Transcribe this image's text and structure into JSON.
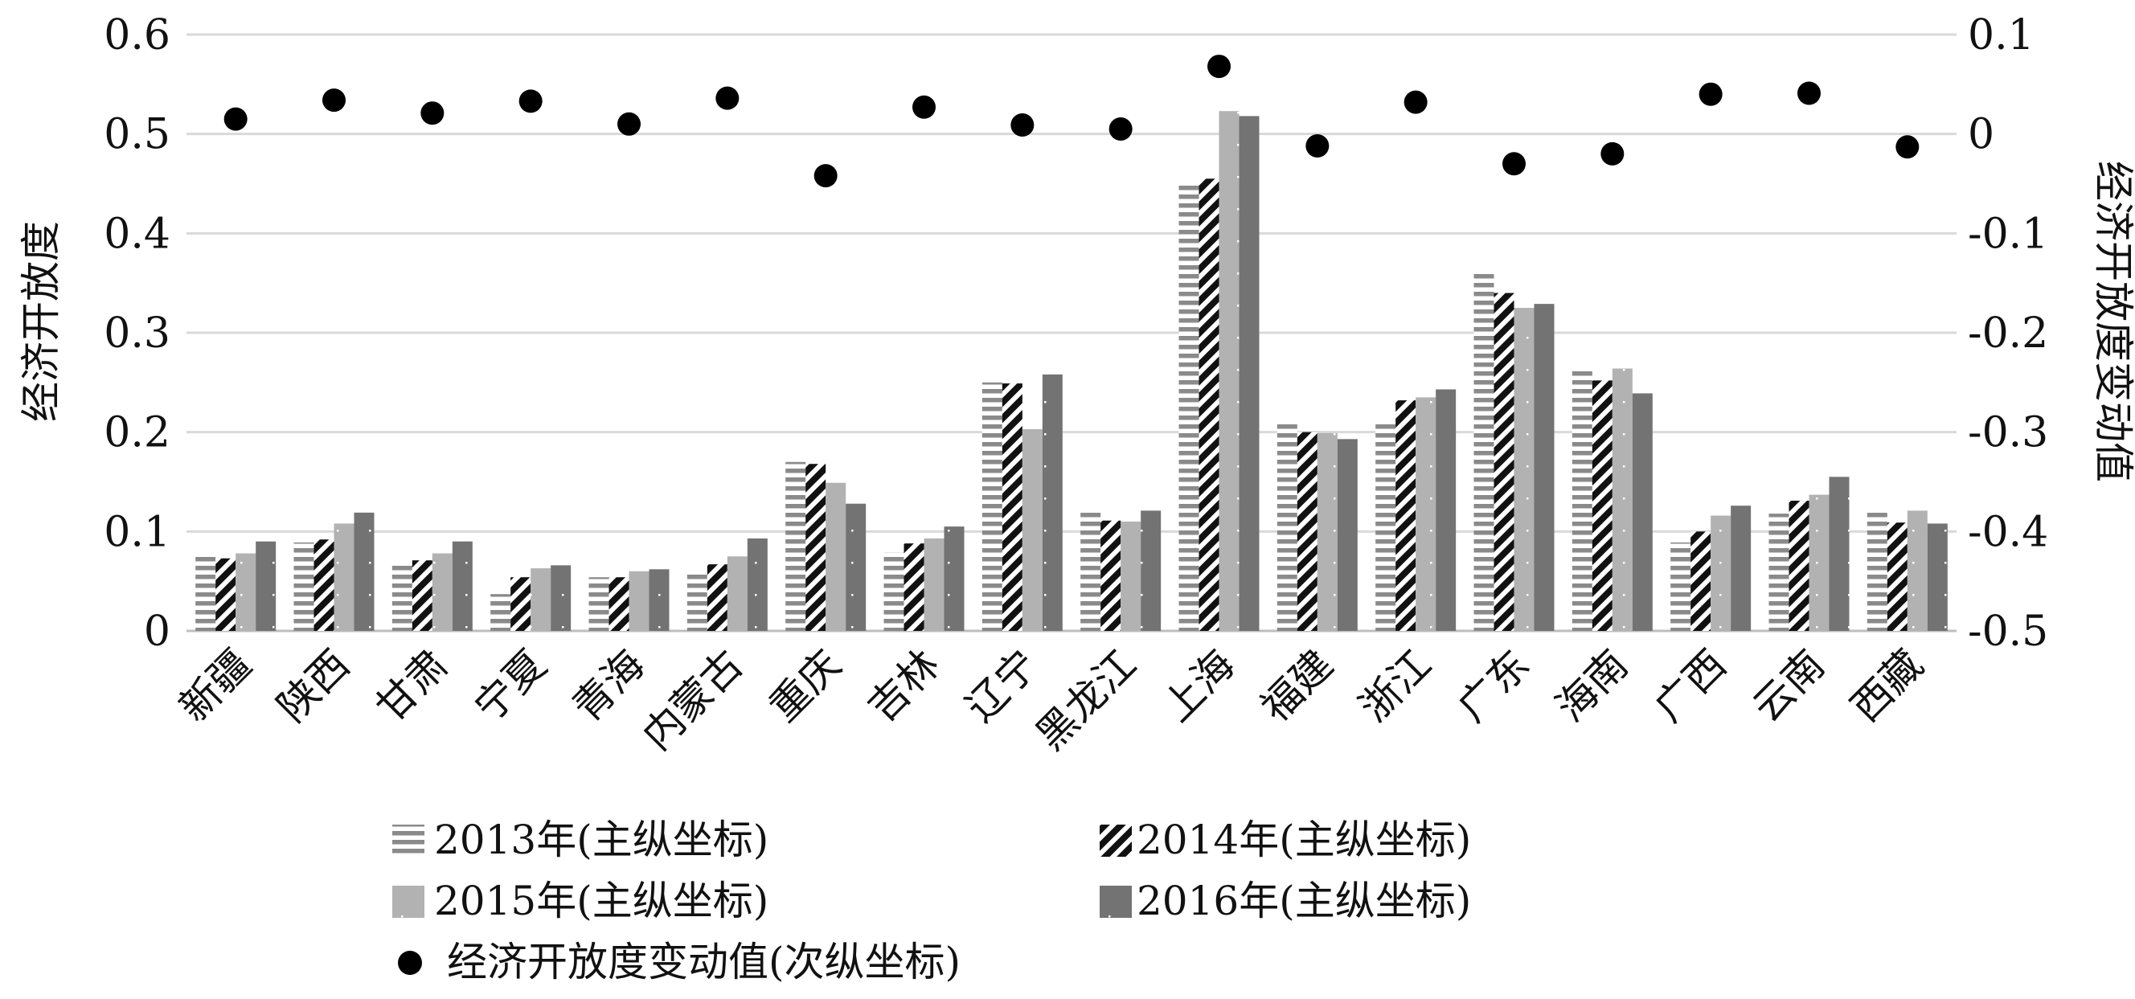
{
  "chart_data": {
    "type": "bar",
    "title": "",
    "ylabel": "经济开放度",
    "y2label": "经济开放度变动值",
    "ylim": [
      0,
      0.6
    ],
    "y2lim": [
      -0.5,
      0.1
    ],
    "y_ticks": [
      "0",
      "0.1",
      "0.2",
      "0.3",
      "0.4",
      "0.5",
      "0.6"
    ],
    "y2_ticks": [
      "-0.5",
      "-0.4",
      "-0.3",
      "-0.2",
      "-0.1",
      "0",
      "0.1"
    ],
    "grid": true,
    "legend_position": "bottom",
    "categories": [
      "新疆",
      "陕西",
      "甘肃",
      "宁夏",
      "青海",
      "内蒙古",
      "重庆",
      "吉林",
      "辽宁",
      "黑龙江",
      "上海",
      "福建",
      "浙江",
      "广东",
      "海南",
      "广西",
      "云南",
      "西藏"
    ],
    "series": [
      {
        "name": "2013年(主纵坐标)",
        "axis": "primary",
        "pattern": "horizontal-lines",
        "color": "#8a8a8a",
        "values": [
          0.078,
          0.089,
          0.068,
          0.037,
          0.054,
          0.058,
          0.17,
          0.079,
          0.25,
          0.119,
          0.45,
          0.209,
          0.21,
          0.362,
          0.262,
          0.089,
          0.118,
          0.119
        ]
      },
      {
        "name": "2014年(主纵坐标)",
        "axis": "primary",
        "pattern": "diagonal-stripes",
        "color": "#111111",
        "values": [
          0.073,
          0.092,
          0.071,
          0.054,
          0.054,
          0.067,
          0.168,
          0.088,
          0.249,
          0.111,
          0.455,
          0.2,
          0.232,
          0.34,
          0.252,
          0.1,
          0.131,
          0.109
        ]
      },
      {
        "name": "2015年(主纵坐标)",
        "axis": "primary",
        "pattern": "light-solid",
        "color": "#b2b2b2",
        "values": [
          0.078,
          0.108,
          0.078,
          0.063,
          0.06,
          0.075,
          0.149,
          0.093,
          0.203,
          0.11,
          0.523,
          0.199,
          0.235,
          0.325,
          0.264,
          0.116,
          0.137,
          0.121
        ]
      },
      {
        "name": "2016年(主纵坐标)",
        "axis": "primary",
        "pattern": "dark-solid",
        "color": "#737373",
        "values": [
          0.09,
          0.119,
          0.09,
          0.066,
          0.062,
          0.093,
          0.128,
          0.105,
          0.258,
          0.121,
          0.518,
          0.193,
          0.243,
          0.329,
          0.239,
          0.126,
          0.155,
          0.108
        ]
      },
      {
        "name": "经济开放度变动值(次纵坐标)",
        "axis": "secondary",
        "marker": "circle",
        "color": "#000000",
        "values": [
          0.015,
          0.034,
          0.021,
          0.033,
          0.01,
          0.036,
          -0.042,
          0.027,
          0.009,
          0.005,
          0.068,
          -0.012,
          0.032,
          -0.03,
          -0.02,
          0.04,
          0.041,
          -0.013
        ]
      }
    ]
  }
}
